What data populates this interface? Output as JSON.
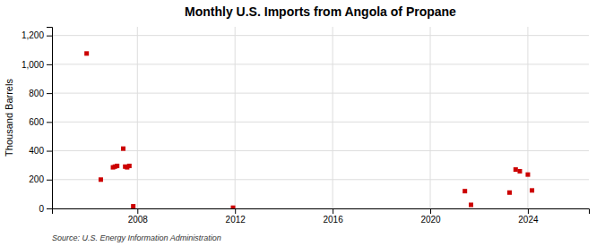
{
  "chart_data": {
    "type": "scatter",
    "title": "Monthly U.S. Imports from Angola of Propane",
    "ylabel": "Thousand Barrels",
    "annotation": "Source: U.S. Energy Information Administration",
    "x": [
      2005.92,
      2006.5,
      2007.0,
      2007.08,
      2007.17,
      2007.42,
      2007.5,
      2007.58,
      2007.67,
      2007.83,
      2011.92,
      2021.42,
      2021.67,
      2023.25,
      2023.5,
      2023.67,
      2024.0,
      2024.17
    ],
    "values": [
      1075,
      200,
      285,
      290,
      295,
      415,
      290,
      285,
      295,
      15,
      5,
      120,
      25,
      110,
      270,
      258,
      235,
      125
    ],
    "color": "#cc0000",
    "marker": "square",
    "xlim": [
      2004.5,
      2026.5
    ],
    "xticks": [
      2008,
      2012,
      2016,
      2020,
      2024
    ],
    "ylim": [
      0,
      1260
    ],
    "yticks": [
      0,
      200,
      400,
      600,
      800,
      {
        "value": 1000,
        "label": "1,000"
      },
      {
        "value": 1200,
        "label": "1,200"
      }
    ],
    "grid": true
  }
}
